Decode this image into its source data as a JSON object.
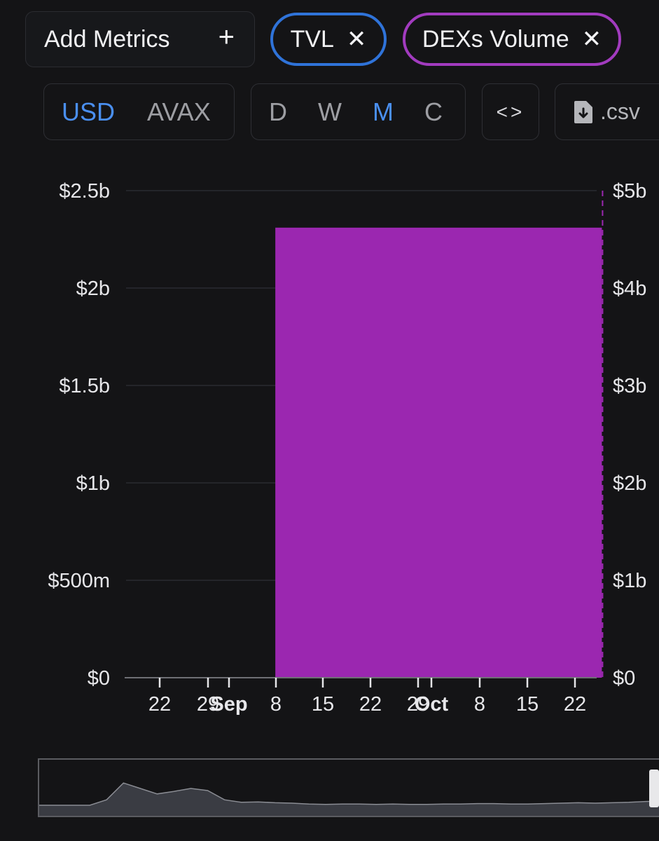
{
  "toolbar": {
    "add_metrics_label": "Add Metrics",
    "add_metrics_icon": "plus-icon",
    "chips": [
      {
        "label": "TVL",
        "color": "#2f73d9",
        "close_icon": "close-icon"
      },
      {
        "label": "DEXs Volume",
        "color": "#a23bbf",
        "close_icon": "close-icon"
      }
    ]
  },
  "controls": {
    "currency": {
      "options": [
        "USD",
        "AVAX"
      ],
      "selected": "USD"
    },
    "period": {
      "options": [
        "D",
        "W",
        "M",
        "C"
      ],
      "selected": "M"
    },
    "embed_icon": "code-icon",
    "csv_icon": "file-download-icon",
    "csv_label": ".csv"
  },
  "chart_data": {
    "type": "bar",
    "title": "",
    "left_axis": {
      "ticks": [
        "$0",
        "$500m",
        "$1b",
        "$1.5b",
        "$2b",
        "$2.5b"
      ],
      "ylim": [
        0,
        2500000000
      ]
    },
    "right_axis": {
      "ticks": [
        "$0",
        "$1b",
        "$2b",
        "$3b",
        "$4b",
        "$5b"
      ],
      "ylim": [
        0,
        5000000000
      ]
    },
    "x_ticks": [
      "22",
      "29",
      "Sep",
      "8",
      "15",
      "22",
      "29",
      "Oct",
      "8",
      "15",
      "22"
    ],
    "x_tick_bold": [
      "Sep",
      "Oct"
    ],
    "series": [
      {
        "name": "DEXs Volume",
        "color": "#9b27b0",
        "axis": "right",
        "points": [
          {
            "start": "2024-09-08",
            "end": "2024-10-26",
            "value": 4620000000
          }
        ]
      },
      {
        "name": "TVL",
        "color": "#2f73d9",
        "axis": "left",
        "points": []
      }
    ],
    "grid": true,
    "legend": "none"
  },
  "overview": {
    "color": "#3a3c43",
    "line_color": "#8a8c93",
    "values": [
      0.05,
      0.05,
      0.05,
      0.05,
      0.18,
      0.58,
      0.45,
      0.32,
      0.38,
      0.45,
      0.4,
      0.18,
      0.12,
      0.13,
      0.11,
      0.1,
      0.08,
      0.07,
      0.08,
      0.08,
      0.07,
      0.08,
      0.07,
      0.07,
      0.08,
      0.08,
      0.09,
      0.09,
      0.08,
      0.08,
      0.09,
      0.1,
      0.11,
      0.1,
      0.11,
      0.12,
      0.14,
      0.15
    ]
  }
}
